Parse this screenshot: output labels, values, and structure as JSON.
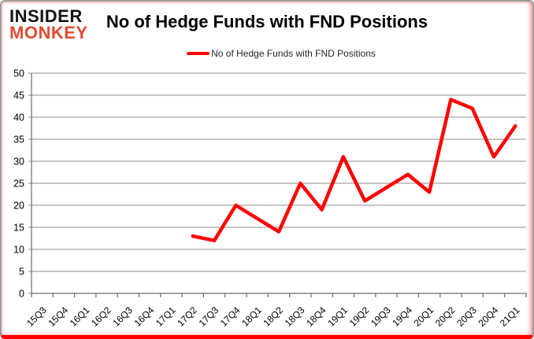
{
  "header": {
    "logo_line1": "INSIDER",
    "logo_line2": "MONKEY",
    "title": "No of Hedge Funds with FND Positions"
  },
  "legend": {
    "label": "No of Hedge Funds with FND Positions"
  },
  "colors": {
    "series": "#fe0000",
    "logo_accent": "#e14b32",
    "logo_dark": "#141414",
    "gridline": "#8e8e8e",
    "axis": "#6b6b6b",
    "tick": "#6b6b6b",
    "label_text": "#000000",
    "frame_border": "#9b9b9b",
    "frame_bottom": "#fe0000",
    "background": "#ffffff"
  },
  "chart_data": {
    "type": "line",
    "title": "No of Hedge Funds with FND Positions",
    "legend_position": "top",
    "grid": true,
    "ylim": [
      0,
      50
    ],
    "ytick_step": 5,
    "xlabel": "",
    "ylabel": "",
    "categories": [
      "15Q3",
      "15Q4",
      "16Q1",
      "16Q2",
      "16Q3",
      "16Q4",
      "17Q1",
      "17Q2",
      "17Q3",
      "17Q4",
      "18Q1",
      "18Q2",
      "18Q3",
      "18Q4",
      "19Q1",
      "19Q2",
      "19Q3",
      "19Q4",
      "20Q1",
      "20Q2",
      "20Q3",
      "20Q4",
      "21Q1"
    ],
    "series": [
      {
        "name": "No of Hedge Funds with FND Positions",
        "color": "#fe0000",
        "values": [
          null,
          null,
          null,
          null,
          null,
          null,
          null,
          13,
          12,
          20,
          17,
          14,
          25,
          19,
          31,
          21,
          24,
          27,
          23,
          44,
          42,
          31,
          38
        ]
      }
    ]
  }
}
